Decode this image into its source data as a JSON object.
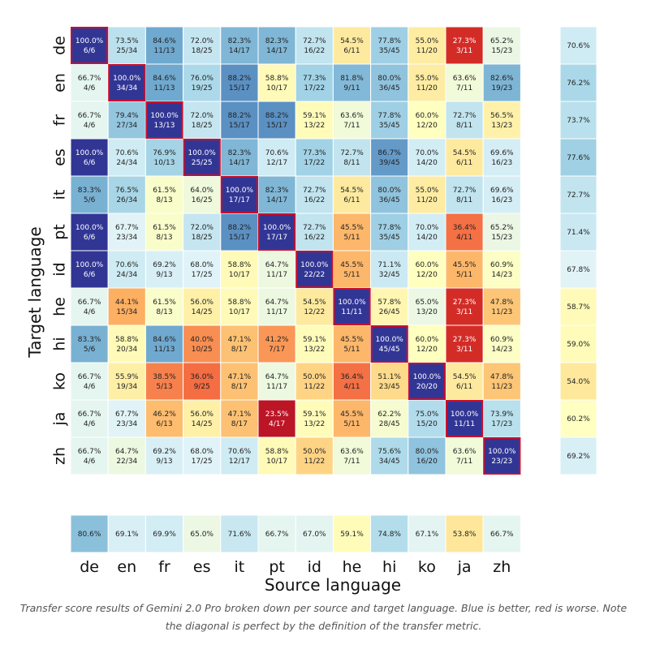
{
  "chart_data": {
    "type": "heatmap",
    "xlabel": "Source language",
    "ylabel": "Target language",
    "x_categories": [
      "de",
      "en",
      "fr",
      "es",
      "it",
      "pt",
      "id",
      "he",
      "hi",
      "ko",
      "ja",
      "zh"
    ],
    "y_categories": [
      "de",
      "en",
      "fr",
      "es",
      "it",
      "pt",
      "id",
      "he",
      "hi",
      "ko",
      "ja",
      "zh"
    ],
    "cells": [
      [
        [
          "100.0%",
          "6/6"
        ],
        [
          "73.5%",
          "25/34"
        ],
        [
          "84.6%",
          "11/13"
        ],
        [
          "72.0%",
          "18/25"
        ],
        [
          "82.3%",
          "14/17"
        ],
        [
          "82.3%",
          "14/17"
        ],
        [
          "72.7%",
          "16/22"
        ],
        [
          "54.5%",
          "6/11"
        ],
        [
          "77.8%",
          "35/45"
        ],
        [
          "55.0%",
          "11/20"
        ],
        [
          "27.3%",
          "3/11"
        ],
        [
          "65.2%",
          "15/23"
        ]
      ],
      [
        [
          "66.7%",
          "4/6"
        ],
        [
          "100.0%",
          "34/34"
        ],
        [
          "84.6%",
          "11/13"
        ],
        [
          "76.0%",
          "19/25"
        ],
        [
          "88.2%",
          "15/17"
        ],
        [
          "58.8%",
          "10/17"
        ],
        [
          "77.3%",
          "17/22"
        ],
        [
          "81.8%",
          "9/11"
        ],
        [
          "80.0%",
          "36/45"
        ],
        [
          "55.0%",
          "11/20"
        ],
        [
          "63.6%",
          "7/11"
        ],
        [
          "82.6%",
          "19/23"
        ]
      ],
      [
        [
          "66.7%",
          "4/6"
        ],
        [
          "79.4%",
          "27/34"
        ],
        [
          "100.0%",
          "13/13"
        ],
        [
          "72.0%",
          "18/25"
        ],
        [
          "88.2%",
          "15/17"
        ],
        [
          "88.2%",
          "15/17"
        ],
        [
          "59.1%",
          "13/22"
        ],
        [
          "63.6%",
          "7/11"
        ],
        [
          "77.8%",
          "35/45"
        ],
        [
          "60.0%",
          "12/20"
        ],
        [
          "72.7%",
          "8/11"
        ],
        [
          "56.5%",
          "13/23"
        ]
      ],
      [
        [
          "100.0%",
          "6/6"
        ],
        [
          "70.6%",
          "24/34"
        ],
        [
          "76.9%",
          "10/13"
        ],
        [
          "100.0%",
          "25/25"
        ],
        [
          "82.3%",
          "14/17"
        ],
        [
          "70.6%",
          "12/17"
        ],
        [
          "77.3%",
          "17/22"
        ],
        [
          "72.7%",
          "8/11"
        ],
        [
          "86.7%",
          "39/45"
        ],
        [
          "70.0%",
          "14/20"
        ],
        [
          "54.5%",
          "6/11"
        ],
        [
          "69.6%",
          "16/23"
        ]
      ],
      [
        [
          "83.3%",
          "5/6"
        ],
        [
          "76.5%",
          "26/34"
        ],
        [
          "61.5%",
          "8/13"
        ],
        [
          "64.0%",
          "16/25"
        ],
        [
          "100.0%",
          "17/17"
        ],
        [
          "82.3%",
          "14/17"
        ],
        [
          "72.7%",
          "16/22"
        ],
        [
          "54.5%",
          "6/11"
        ],
        [
          "80.0%",
          "36/45"
        ],
        [
          "55.0%",
          "11/20"
        ],
        [
          "72.7%",
          "8/11"
        ],
        [
          "69.6%",
          "16/23"
        ]
      ],
      [
        [
          "100.0%",
          "6/6"
        ],
        [
          "67.7%",
          "23/34"
        ],
        [
          "61.5%",
          "8/13"
        ],
        [
          "72.0%",
          "18/25"
        ],
        [
          "88.2%",
          "15/17"
        ],
        [
          "100.0%",
          "17/17"
        ],
        [
          "72.7%",
          "16/22"
        ],
        [
          "45.5%",
          "5/11"
        ],
        [
          "77.8%",
          "35/45"
        ],
        [
          "70.0%",
          "14/20"
        ],
        [
          "36.4%",
          "4/11"
        ],
        [
          "65.2%",
          "15/23"
        ]
      ],
      [
        [
          "100.0%",
          "6/6"
        ],
        [
          "70.6%",
          "24/34"
        ],
        [
          "69.2%",
          "9/13"
        ],
        [
          "68.0%",
          "17/25"
        ],
        [
          "58.8%",
          "10/17"
        ],
        [
          "64.7%",
          "11/17"
        ],
        [
          "100.0%",
          "22/22"
        ],
        [
          "45.5%",
          "5/11"
        ],
        [
          "71.1%",
          "32/45"
        ],
        [
          "60.0%",
          "12/20"
        ],
        [
          "45.5%",
          "5/11"
        ],
        [
          "60.9%",
          "14/23"
        ]
      ],
      [
        [
          "66.7%",
          "4/6"
        ],
        [
          "44.1%",
          "15/34"
        ],
        [
          "61.5%",
          "8/13"
        ],
        [
          "56.0%",
          "14/25"
        ],
        [
          "58.8%",
          "10/17"
        ],
        [
          "64.7%",
          "11/17"
        ],
        [
          "54.5%",
          "12/22"
        ],
        [
          "100.0%",
          "11/11"
        ],
        [
          "57.8%",
          "26/45"
        ],
        [
          "65.0%",
          "13/20"
        ],
        [
          "27.3%",
          "3/11"
        ],
        [
          "47.8%",
          "11/23"
        ]
      ],
      [
        [
          "83.3%",
          "5/6"
        ],
        [
          "58.8%",
          "20/34"
        ],
        [
          "84.6%",
          "11/13"
        ],
        [
          "40.0%",
          "10/25"
        ],
        [
          "47.1%",
          "8/17"
        ],
        [
          "41.2%",
          "7/17"
        ],
        [
          "59.1%",
          "13/22"
        ],
        [
          "45.5%",
          "5/11"
        ],
        [
          "100.0%",
          "45/45"
        ],
        [
          "60.0%",
          "12/20"
        ],
        [
          "27.3%",
          "3/11"
        ],
        [
          "60.9%",
          "14/23"
        ]
      ],
      [
        [
          "66.7%",
          "4/6"
        ],
        [
          "55.9%",
          "19/34"
        ],
        [
          "38.5%",
          "5/13"
        ],
        [
          "36.0%",
          "9/25"
        ],
        [
          "47.1%",
          "8/17"
        ],
        [
          "64.7%",
          "11/17"
        ],
        [
          "50.0%",
          "11/22"
        ],
        [
          "36.4%",
          "4/11"
        ],
        [
          "51.1%",
          "23/45"
        ],
        [
          "100.0%",
          "20/20"
        ],
        [
          "54.5%",
          "6/11"
        ],
        [
          "47.8%",
          "11/23"
        ]
      ],
      [
        [
          "66.7%",
          "4/6"
        ],
        [
          "67.7%",
          "23/34"
        ],
        [
          "46.2%",
          "6/13"
        ],
        [
          "56.0%",
          "14/25"
        ],
        [
          "47.1%",
          "8/17"
        ],
        [
          "23.5%",
          "4/17"
        ],
        [
          "59.1%",
          "13/22"
        ],
        [
          "45.5%",
          "5/11"
        ],
        [
          "62.2%",
          "28/45"
        ],
        [
          "75.0%",
          "15/20"
        ],
        [
          "100.0%",
          "11/11"
        ],
        [
          "73.9%",
          "17/23"
        ]
      ],
      [
        [
          "66.7%",
          "4/6"
        ],
        [
          "64.7%",
          "22/34"
        ],
        [
          "69.2%",
          "9/13"
        ],
        [
          "68.0%",
          "17/25"
        ],
        [
          "70.6%",
          "12/17"
        ],
        [
          "58.8%",
          "10/17"
        ],
        [
          "50.0%",
          "11/22"
        ],
        [
          "63.6%",
          "7/11"
        ],
        [
          "75.6%",
          "34/45"
        ],
        [
          "80.0%",
          "16/20"
        ],
        [
          "63.6%",
          "7/11"
        ],
        [
          "100.0%",
          "23/23"
        ]
      ]
    ],
    "row_totals": [
      "70.6%",
      "76.2%",
      "73.7%",
      "77.6%",
      "72.7%",
      "71.4%",
      "67.8%",
      "58.7%",
      "59.0%",
      "54.0%",
      "60.2%",
      "69.2%"
    ],
    "column_totals": [
      "80.6%",
      "69.1%",
      "69.9%",
      "65.0%",
      "71.6%",
      "66.7%",
      "67.0%",
      "59.1%",
      "74.8%",
      "67.1%",
      "53.8%",
      "66.7%"
    ],
    "colormap": "RdYlBu",
    "diagonal_highlight_color": "#c8102e"
  },
  "caption": "Transfer score results of Gemini 2.0 Pro broken down per source and target language. Blue is better, red is worse. Note the diagonal is perfect by the definition of the transfer metric."
}
